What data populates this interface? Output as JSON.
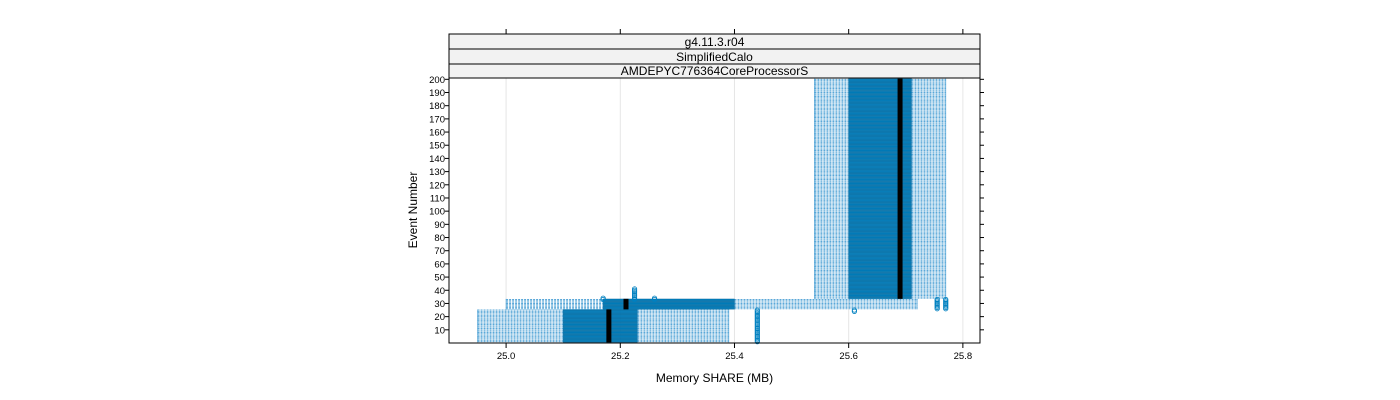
{
  "chart_data": {
    "type": "bwplot",
    "strips": [
      "g4.11.3.r04",
      "SimplifiedCalo",
      "AMDEPYC776364CoreProcessorS"
    ],
    "xlabel": "Memory SHARE (MB)",
    "ylabel": "Event Number",
    "xlim": [
      24.9,
      25.83
    ],
    "ylim": [
      0,
      201
    ],
    "x_ticks": [
      25.0,
      25.2,
      25.4,
      25.6,
      25.8
    ],
    "x_tick_labels": [
      "25.0",
      "25.2",
      "25.4",
      "25.6",
      "25.8"
    ],
    "y_ticks": [
      10,
      20,
      30,
      40,
      50,
      60,
      70,
      80,
      90,
      100,
      110,
      120,
      130,
      140,
      150,
      160,
      170,
      180,
      190,
      200
    ],
    "y_tick_labels": [
      "10",
      "20",
      "30",
      "40",
      "50",
      "60",
      "70",
      "80",
      "90",
      "100",
      "110",
      "120",
      "130",
      "140",
      "150",
      "160",
      "170",
      "180",
      "190",
      "200"
    ],
    "grid": "vertical",
    "colors": {
      "box": "#0080c0",
      "whisker": "#5aa8d8",
      "median": "#000000",
      "strip": "#f2f2f2"
    },
    "groups": [
      {
        "events": [
          1,
          25
        ],
        "whisker_low": 24.95,
        "q1": 25.1,
        "median": 25.18,
        "q3": 25.23,
        "whisker_high": 25.39
      },
      {
        "events": [
          26,
          33
        ],
        "whisker_low": 25.0,
        "q1": 25.17,
        "median": 25.21,
        "q3": 25.4,
        "whisker_high": 25.72
      },
      {
        "events": [
          34,
          200
        ],
        "whisker_low": 25.54,
        "q1": 25.6,
        "median": 25.69,
        "q3": 25.71,
        "whisker_high": 25.77
      }
    ],
    "outliers": [
      {
        "x": 25.44,
        "events": [
          1,
          25
        ]
      },
      {
        "x": 25.61,
        "events": [
          24,
          25
        ]
      },
      {
        "x": 25.17,
        "events": [
          33,
          34
        ]
      },
      {
        "x": 25.26,
        "events": [
          33,
          34
        ]
      },
      {
        "x": 25.225,
        "events": [
          33,
          41
        ]
      },
      {
        "x": 25.755,
        "events": [
          26,
          33
        ]
      },
      {
        "x": 25.77,
        "events": [
          26,
          33
        ]
      }
    ]
  }
}
